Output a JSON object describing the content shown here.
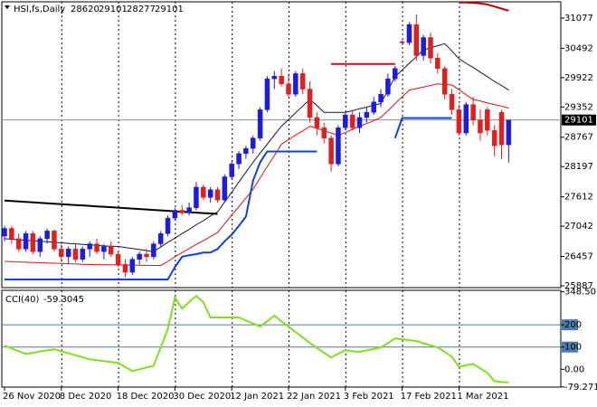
{
  "chart_data": [
    {
      "type": "candlestick",
      "title": "HSI,fs,Daily",
      "categories": [
        "26 Nov 2020",
        null,
        null,
        null,
        null,
        null,
        null,
        null,
        "8 Dec 2020",
        null,
        null,
        null,
        null,
        null,
        null,
        null,
        "18 Dec 2020",
        null,
        null,
        null,
        null,
        null,
        null,
        null,
        "30 Dec 2020",
        null,
        null,
        null,
        null,
        null,
        null,
        null,
        "12 Jan 2021",
        null,
        null,
        null,
        null,
        null,
        null,
        null,
        "22 Jan 2021",
        null,
        null,
        null,
        null,
        null,
        null,
        null,
        "3 Feb 2021",
        null,
        null,
        null,
        null,
        null,
        null,
        null,
        "17 Feb 2021",
        null,
        null,
        null,
        null,
        null,
        null,
        null,
        "1 Mar 2021",
        null,
        null,
        null,
        null,
        null,
        null,
        null
      ],
      "open": [
        26850,
        27000,
        26800,
        26600,
        26900,
        26550,
        26800,
        26950,
        26600,
        26450,
        26600,
        26400,
        26600,
        26700,
        26550,
        26650,
        26500,
        26300,
        26150,
        26400,
        26500,
        26450,
        26700,
        26900,
        27200,
        27350,
        27300,
        27400,
        27800,
        27600,
        27750,
        27550,
        28000,
        28250,
        28450,
        28550,
        28750,
        29300,
        29900,
        29950,
        29800,
        29600,
        30000,
        29700,
        29150,
        28950,
        28750,
        28250,
        28950,
        29200,
        28950,
        29150,
        29250,
        29450,
        29600,
        29900,
        30620,
        30600,
        30950,
        30350,
        30700,
        30300,
        30100,
        29600,
        29300,
        28850,
        29400,
        29100,
        29300,
        28900,
        29250,
        28620
      ],
      "high": [
        27050,
        27050,
        26900,
        26950,
        26950,
        26850,
        27000,
        26980,
        26700,
        26650,
        26700,
        26650,
        26750,
        26800,
        26700,
        26750,
        26550,
        26400,
        26450,
        26550,
        26600,
        26750,
        26950,
        27250,
        27400,
        27450,
        27500,
        27900,
        27850,
        27800,
        27800,
        28050,
        28300,
        28500,
        28600,
        28800,
        29350,
        29950,
        30050,
        30100,
        30000,
        30050,
        30100,
        29850,
        29250,
        29050,
        28800,
        29000,
        29250,
        29300,
        29250,
        29350,
        29550,
        29700,
        30000,
        30150,
        30650,
        31000,
        31150,
        30750,
        30800,
        30400,
        30150,
        29700,
        29400,
        29450,
        29550,
        29300,
        29350,
        29000,
        29300,
        29101
      ],
      "low": [
        26750,
        26700,
        26550,
        26550,
        26500,
        26450,
        26700,
        26550,
        26350,
        26300,
        26350,
        26350,
        26450,
        26500,
        26400,
        26450,
        26250,
        26050,
        26100,
        26300,
        26350,
        26400,
        26650,
        26850,
        27150,
        27250,
        27250,
        27350,
        27550,
        27500,
        27500,
        27500,
        27950,
        28150,
        28350,
        28450,
        28700,
        29250,
        29700,
        29750,
        29550,
        29550,
        29600,
        29050,
        28800,
        28650,
        28100,
        28200,
        28900,
        28900,
        28850,
        29050,
        29200,
        29350,
        29550,
        29850,
        30550,
        30550,
        30250,
        30250,
        30200,
        30000,
        29500,
        29200,
        28800,
        28800,
        29000,
        28700,
        28800,
        28400,
        28350,
        28277
      ],
      "close": [
        27000,
        26800,
        26600,
        26900,
        26550,
        26800,
        26950,
        26600,
        26450,
        26600,
        26400,
        26600,
        26700,
        26550,
        26650,
        26500,
        26300,
        26150,
        26400,
        26500,
        26450,
        26700,
        26900,
        27200,
        27350,
        27300,
        27400,
        27800,
        27600,
        27750,
        27550,
        28000,
        28250,
        28450,
        28550,
        28750,
        29300,
        29900,
        29950,
        29800,
        29600,
        30000,
        29700,
        29150,
        28950,
        28750,
        28250,
        28950,
        29200,
        28950,
        29150,
        29250,
        29450,
        29600,
        29900,
        30100,
        30600,
        30950,
        30350,
        30700,
        30300,
        30100,
        29600,
        29300,
        28850,
        29400,
        29100,
        28850,
        28900,
        28600,
        28620,
        29101
      ],
      "up_color": "#1c1ce0",
      "down_color": "#e02020",
      "last_price": 29101,
      "ylim": [
        25852,
        31392
      ],
      "yticks": [
        31077,
        30492,
        29922,
        29352,
        28767,
        28197,
        27612,
        27042,
        26457,
        25887
      ],
      "series": [
        {
          "color": "#10105a",
          "width": 1,
          "values": [
            26800,
            26790,
            26780,
            26770,
            26760,
            26750,
            26740,
            26730,
            26720,
            26710,
            26700,
            26690,
            26680,
            26670,
            26660,
            26655,
            26650,
            26630,
            26610,
            26590,
            26570,
            26550,
            26640,
            26730,
            26810,
            26900,
            26980,
            27070,
            27150,
            27240,
            27320,
            27510,
            27700,
            27900,
            28090,
            28280,
            28460,
            28630,
            28810,
            28980,
            29110,
            29240,
            29370,
            29500,
            29380,
            29250,
            29250,
            29250,
            29250,
            29280,
            29320,
            29350,
            29390,
            29420,
            29680,
            29940,
            30070,
            30200,
            30330,
            30460,
            30500,
            30540,
            30580,
            30440,
            30290,
            30200,
            30120,
            30030,
            29940,
            29850,
            29770,
            29680
          ]
        },
        {
          "color": "#e01010",
          "width": 1,
          "values": [
            26360,
            26355,
            26350,
            26345,
            26340,
            26335,
            26330,
            26325,
            26320,
            26315,
            26310,
            26305,
            26300,
            26298,
            26296,
            26294,
            26292,
            26290,
            26288,
            26286,
            26284,
            26282,
            26280,
            26360,
            26450,
            26530,
            26610,
            26690,
            26760,
            26840,
            26920,
            27090,
            27260,
            27420,
            27590,
            27760,
            27980,
            28200,
            28410,
            28630,
            28720,
            28810,
            28890,
            28980,
            28940,
            28890,
            28850,
            28800,
            28860,
            28920,
            28980,
            29030,
            29090,
            29150,
            29280,
            29420,
            29550,
            29680,
            29710,
            29740,
            29770,
            29800,
            29790,
            29780,
            29690,
            29590,
            29500,
            29470,
            29430,
            29400,
            29370,
            29330
          ]
        },
        {
          "color": "#1040e0",
          "width": 2,
          "values": [
            26010,
            26010,
            26010,
            26010,
            26010,
            26010,
            26010,
            26010,
            26010,
            26010,
            26010,
            26010,
            26010,
            26010,
            26010,
            26010,
            26010,
            26010,
            26010,
            26010,
            26010,
            26010,
            26010,
            26010,
            26250,
            26450,
            26480,
            26500,
            26530,
            26530,
            26600,
            26750,
            26880,
            27050,
            27230,
            27930,
            28280,
            28490,
            28490,
            28490,
            28490,
            28490,
            28490,
            28490,
            28490,
            null,
            null,
            null,
            null,
            null,
            null,
            null,
            null,
            null,
            null,
            28750,
            29140,
            29140,
            29140,
            29140,
            29140,
            29140,
            29140,
            29140,
            null,
            null,
            null,
            null,
            null,
            null,
            null,
            null
          ]
        },
        {
          "color": "#000000",
          "width": 2,
          "values": [
            27540,
            27531,
            27523,
            27514,
            27505,
            27497,
            27488,
            27479,
            27471,
            27462,
            27453,
            27445,
            27436,
            27427,
            27419,
            27410,
            27401,
            27393,
            27384,
            27375,
            27367,
            27358,
            27349,
            27341,
            27332,
            27323,
            27315,
            27306,
            27297,
            27289,
            27280,
            null,
            null,
            null,
            null,
            null,
            null,
            null,
            null,
            null,
            null,
            null,
            null,
            null,
            null,
            null,
            null,
            null,
            null,
            null,
            null,
            null,
            null,
            null,
            null,
            null,
            null,
            null,
            null,
            null,
            null,
            null,
            null,
            null,
            null,
            null,
            null,
            null,
            null,
            null,
            null,
            null
          ]
        },
        {
          "color": "#d01010",
          "width": 2,
          "values": [
            null,
            null,
            null,
            null,
            null,
            null,
            null,
            null,
            null,
            null,
            null,
            null,
            null,
            null,
            null,
            null,
            null,
            null,
            null,
            null,
            null,
            null,
            null,
            null,
            null,
            null,
            null,
            null,
            null,
            null,
            null,
            null,
            null,
            null,
            null,
            null,
            null,
            null,
            null,
            null,
            null,
            null,
            null,
            null,
            null,
            null,
            30185,
            30185,
            30185,
            30185,
            30185,
            30185,
            30185,
            30185,
            30185,
            30185,
            null,
            null,
            null,
            null,
            null,
            null,
            null,
            null,
            null,
            null,
            null,
            null,
            null,
            null,
            null,
            null
          ]
        },
        {
          "color": "#c00000",
          "width": 2,
          "values": [
            null,
            null,
            null,
            null,
            null,
            null,
            null,
            null,
            null,
            null,
            null,
            null,
            null,
            null,
            null,
            null,
            null,
            null,
            null,
            null,
            null,
            null,
            null,
            null,
            null,
            null,
            null,
            null,
            null,
            null,
            null,
            null,
            null,
            null,
            null,
            null,
            null,
            null,
            null,
            null,
            null,
            null,
            null,
            null,
            null,
            null,
            null,
            null,
            null,
            null,
            null,
            null,
            null,
            null,
            null,
            null,
            null,
            null,
            null,
            null,
            null,
            null,
            null,
            null,
            31380,
            31380,
            31370,
            31360,
            31340,
            31300,
            31260,
            31220
          ]
        }
      ]
    },
    {
      "type": "line",
      "title": "CCI(40)",
      "ylim": [
        -80,
        355
      ],
      "yticks": [
        348.5018,
        200,
        100,
        {
          "value": 0,
          "label": "0.00"
        },
        -79.2719
      ],
      "levels": [
        200,
        100
      ],
      "series": [
        {
          "color": "#80e020",
          "width": 2,
          "values": [
            106,
            94,
            81,
            69,
            74,
            80,
            85,
            90,
            81,
            72,
            63,
            54,
            45,
            41,
            37,
            33,
            29,
            10,
            -8,
            0,
            8,
            16,
            98,
            180,
            322,
            273,
            302,
            330,
            302,
            233,
            233,
            233,
            233,
            233,
            219,
            206,
            192,
            216,
            241,
            216,
            192,
            167,
            143,
            118,
            96,
            75,
            53,
            70,
            86,
            82,
            78,
            85,
            91,
            98,
            118,
            139,
            135,
            131,
            127,
            117,
            108,
            98,
            78,
            57,
            12,
            18,
            24,
            4,
            -16,
            -53,
            -57,
            -59.3045
          ]
        }
      ]
    }
  ]
}
